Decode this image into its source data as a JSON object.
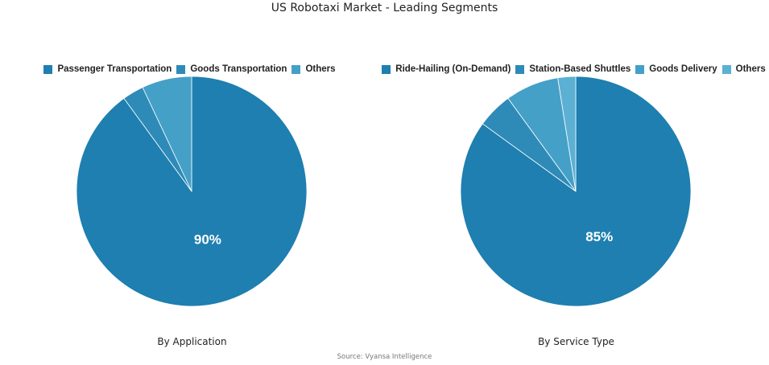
{
  "title": "US Robotaxi Market - Leading Segments",
  "source": "Source: Vyansa Intelligence",
  "colors": {
    "segment_1": "#1e7fb0",
    "segment_2": "#2e8bb8",
    "segment_3": "#45a0c8",
    "segment_4": "#5cb0d3"
  },
  "chart_data": [
    {
      "type": "pie",
      "title": "By Application",
      "labels": [
        "Passenger Transportation",
        "Goods Transportation",
        "Others"
      ],
      "values": [
        90,
        3,
        7
      ],
      "data_labels": [
        "90%",
        "",
        ""
      ],
      "colors": [
        "#1e7fb0",
        "#2e8bb8",
        "#45a0c8"
      ],
      "legend_position": "top"
    },
    {
      "type": "pie",
      "title": "By Service Type",
      "labels": [
        "Ride-Hailing (On-Demand)",
        "Station-Based Shuttles",
        "Goods Delivery",
        "Others"
      ],
      "values": [
        85,
        5,
        7.5,
        2.5
      ],
      "data_labels": [
        "85%",
        "",
        "",
        ""
      ],
      "colors": [
        "#1e7fb0",
        "#2e8bb8",
        "#45a0c8",
        "#5cb0d3"
      ],
      "legend_position": "top"
    }
  ]
}
